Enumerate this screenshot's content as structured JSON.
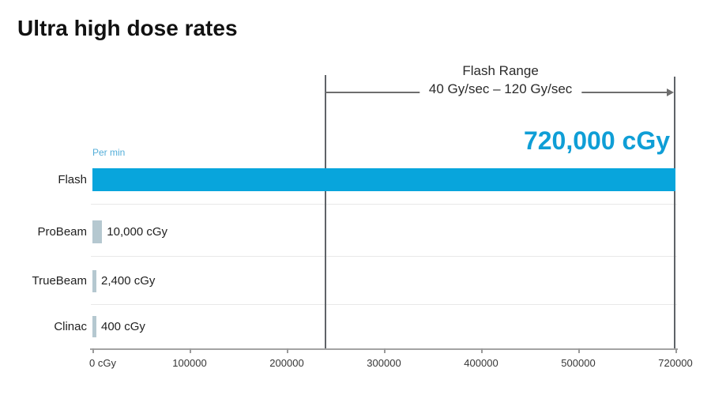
{
  "title": "Ultra high dose rates",
  "chart_data": {
    "type": "bar",
    "orientation": "horizontal",
    "title": "Ultra high dose rates",
    "categories": [
      "Flash",
      "ProBeam",
      "TrueBeam",
      "Clinac"
    ],
    "values": [
      720000,
      10000,
      2400,
      400
    ],
    "bar_value_labels": [
      "",
      "10,000 cGy",
      "2,400 cGy",
      "400 cGy"
    ],
    "per_min_note": "Per min",
    "unit": "cGy per min",
    "xlim": [
      0,
      720000
    ],
    "x_ticks": [
      {
        "value": 0,
        "label": "0 cGy"
      },
      {
        "value": 100000,
        "label": "100000"
      },
      {
        "value": 200000,
        "label": "200000"
      },
      {
        "value": 300000,
        "label": "300000"
      },
      {
        "value": 400000,
        "label": "400000"
      },
      {
        "value": 500000,
        "label": "500000"
      },
      {
        "value": 720000,
        "label": "720000"
      }
    ],
    "grid": "horizontal row separators",
    "legend_position": "none",
    "annotations": {
      "flash_range_title": "Flash Range",
      "flash_range_text": "40 Gy/sec – 120 Gy/sec",
      "flash_range_start": 240000,
      "flash_range_end": 720000,
      "flash_peak_label": "720,000 cGy"
    }
  },
  "colors": {
    "flash_bar": "#08a5dc",
    "secondary_bar": "#b5c8d0",
    "peak_text": "#0f9ed6",
    "per_min_text": "#54aed9"
  }
}
